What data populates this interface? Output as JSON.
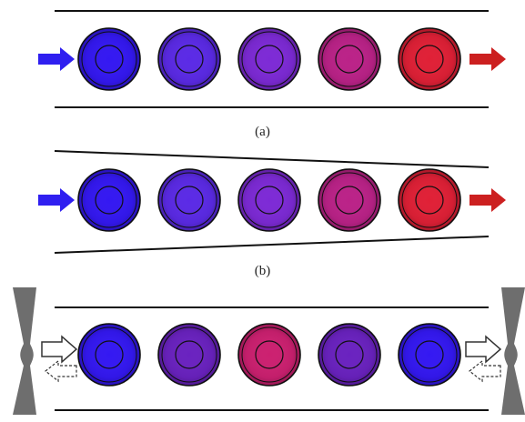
{
  "panels": [
    {
      "caption": "(a)",
      "channel": "straight",
      "arrows": "flow",
      "cells": [
        {
          "color": "#3418f2"
        },
        {
          "color": "#5b2ae6"
        },
        {
          "color": "#7d2ad6"
        },
        {
          "color": "#bb2288"
        },
        {
          "color": "#e02036"
        }
      ]
    },
    {
      "caption": "(b)",
      "channel": "tapered",
      "arrows": "flow",
      "cells": [
        {
          "color": "#3418f2"
        },
        {
          "color": "#5b2ae6"
        },
        {
          "color": "#7d2ad6"
        },
        {
          "color": "#bb2288"
        },
        {
          "color": "#e02036"
        }
      ]
    },
    {
      "caption": "",
      "channel": "straight-with-transducers",
      "arrows": "bidirectional",
      "cells": [
        {
          "color": "#3418f2"
        },
        {
          "color": "#6a22c0"
        },
        {
          "color": "#cc2070"
        },
        {
          "color": "#6a22c0"
        },
        {
          "color": "#3418f2"
        }
      ]
    }
  ],
  "colors": {
    "inlet_arrow": "#2f1ff0",
    "outlet_arrow": "#cc2020",
    "channel_wall": "#111111",
    "transducer": "#6e6e6e"
  }
}
